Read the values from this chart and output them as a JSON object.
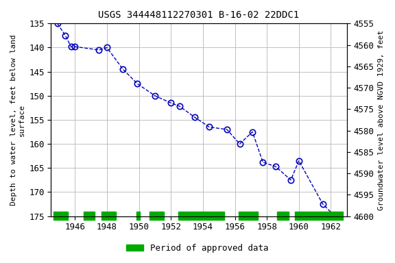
{
  "title": "USGS 344448112270301 B-16-02 22DDC1",
  "ylabel_left": "Depth to water level, feet below land\nsurface",
  "ylabel_right": "Groundwater level above NGVD 1929, feet",
  "x": [
    1944.9,
    1945.4,
    1945.75,
    1946.0,
    1947.5,
    1948.0,
    1949.0,
    1949.9,
    1951.0,
    1952.0,
    1952.55,
    1953.5,
    1954.4,
    1955.5,
    1956.3,
    1957.1,
    1957.75,
    1958.55,
    1959.5,
    1960.0,
    1961.5,
    1962.25
  ],
  "y": [
    135.0,
    137.5,
    139.8,
    139.8,
    140.5,
    140.0,
    144.5,
    147.5,
    150.0,
    151.5,
    152.2,
    154.5,
    156.5,
    157.0,
    160.0,
    157.5,
    163.8,
    164.7,
    167.5,
    163.5,
    172.5,
    175.0
  ],
  "ylim_left": [
    135,
    175
  ],
  "ylim_right": [
    4600,
    4555
  ],
  "xlim": [
    1944.5,
    1963.0
  ],
  "yticks_left": [
    135,
    140,
    145,
    150,
    155,
    160,
    165,
    170,
    175
  ],
  "yticks_right": [
    4600,
    4595,
    4590,
    4585,
    4580,
    4575,
    4570,
    4565,
    4560,
    4555
  ],
  "yticks_right_labels": [
    "4600",
    "4595",
    "4590",
    "4585",
    "4580",
    "4575",
    "4570",
    "4565",
    "4560",
    "4555"
  ],
  "xticks": [
    1946,
    1948,
    1950,
    1952,
    1954,
    1956,
    1958,
    1960,
    1962
  ],
  "line_color": "#0000bb",
  "marker_color": "#0000bb",
  "bg_color": "#ffffff",
  "grid_color": "#c0c0c0",
  "green_bars": [
    [
      1944.65,
      1945.55
    ],
    [
      1946.55,
      1947.25
    ],
    [
      1947.65,
      1948.55
    ],
    [
      1949.83,
      1950.05
    ],
    [
      1950.65,
      1951.55
    ],
    [
      1952.45,
      1955.35
    ],
    [
      1956.25,
      1957.45
    ],
    [
      1958.65,
      1959.35
    ],
    [
      1959.75,
      1962.75
    ]
  ],
  "legend_label": "Period of approved data",
  "legend_color": "#00aa00",
  "font_family": "monospace",
  "title_fontsize": 10,
  "axis_fontsize": 8,
  "tick_fontsize": 9
}
